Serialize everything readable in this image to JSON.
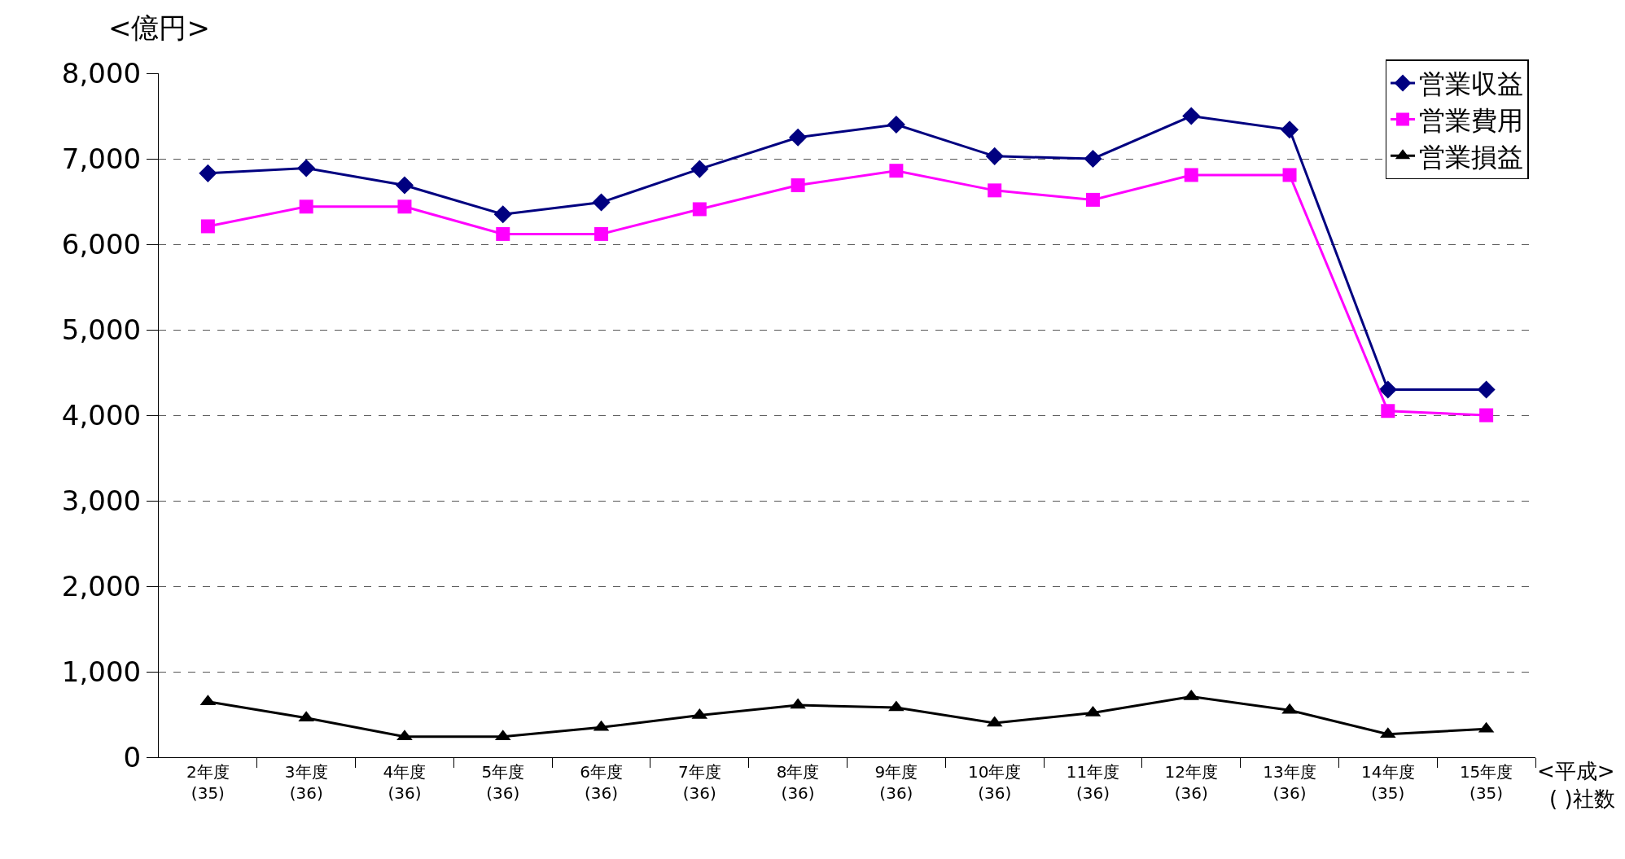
{
  "chart_data": {
    "type": "line",
    "ylabel": "<億円>",
    "categories": [
      "2年度\n(35)",
      "3年度\n(36)",
      "4年度\n(36)",
      "5年度\n(36)",
      "6年度\n(36)",
      "7年度\n(36)",
      "8年度\n(36)",
      "9年度\n(36)",
      "10年度\n(36)",
      "11年度\n(36)",
      "12年度\n(36)",
      "13年度\n(36)",
      "14年度\n(35)",
      "15年度\n(35)"
    ],
    "series": [
      {
        "name": "営業収益",
        "color": "#000080",
        "marker": "diamond",
        "values": [
          6830,
          6890,
          6690,
          6350,
          6490,
          6880,
          7250,
          7400,
          7030,
          7000,
          7500,
          7340,
          4300,
          4300
        ]
      },
      {
        "name": "営業費用",
        "color": "#ff00ff",
        "marker": "square",
        "values": [
          6210,
          6440,
          6440,
          6120,
          6120,
          6410,
          6690,
          6860,
          6630,
          6520,
          6810,
          6810,
          4050,
          4000
        ]
      },
      {
        "name": "営業損益",
        "color": "#000000",
        "marker": "triangle",
        "values": [
          650,
          460,
          240,
          240,
          350,
          490,
          610,
          580,
          400,
          520,
          710,
          550,
          270,
          330
        ]
      }
    ],
    "ylim": [
      0,
      8000
    ],
    "yticks": [
      0,
      {
        "value": 1000,
        "label": "1,000"
      },
      {
        "value": 2000,
        "label": "2,000"
      },
      {
        "value": 3000,
        "label": "3,000"
      },
      {
        "value": 4000,
        "label": "4,000"
      },
      {
        "value": 5000,
        "label": "5,000"
      },
      {
        "value": 6000,
        "label": "6,000"
      },
      {
        "value": 7000,
        "label": "7,000"
      },
      {
        "value": 8000,
        "label": "8,000"
      }
    ],
    "grid": "y",
    "legend": "top right",
    "line_style": "solid",
    "annotations": [
      "<平成>\n( )社数"
    ]
  }
}
